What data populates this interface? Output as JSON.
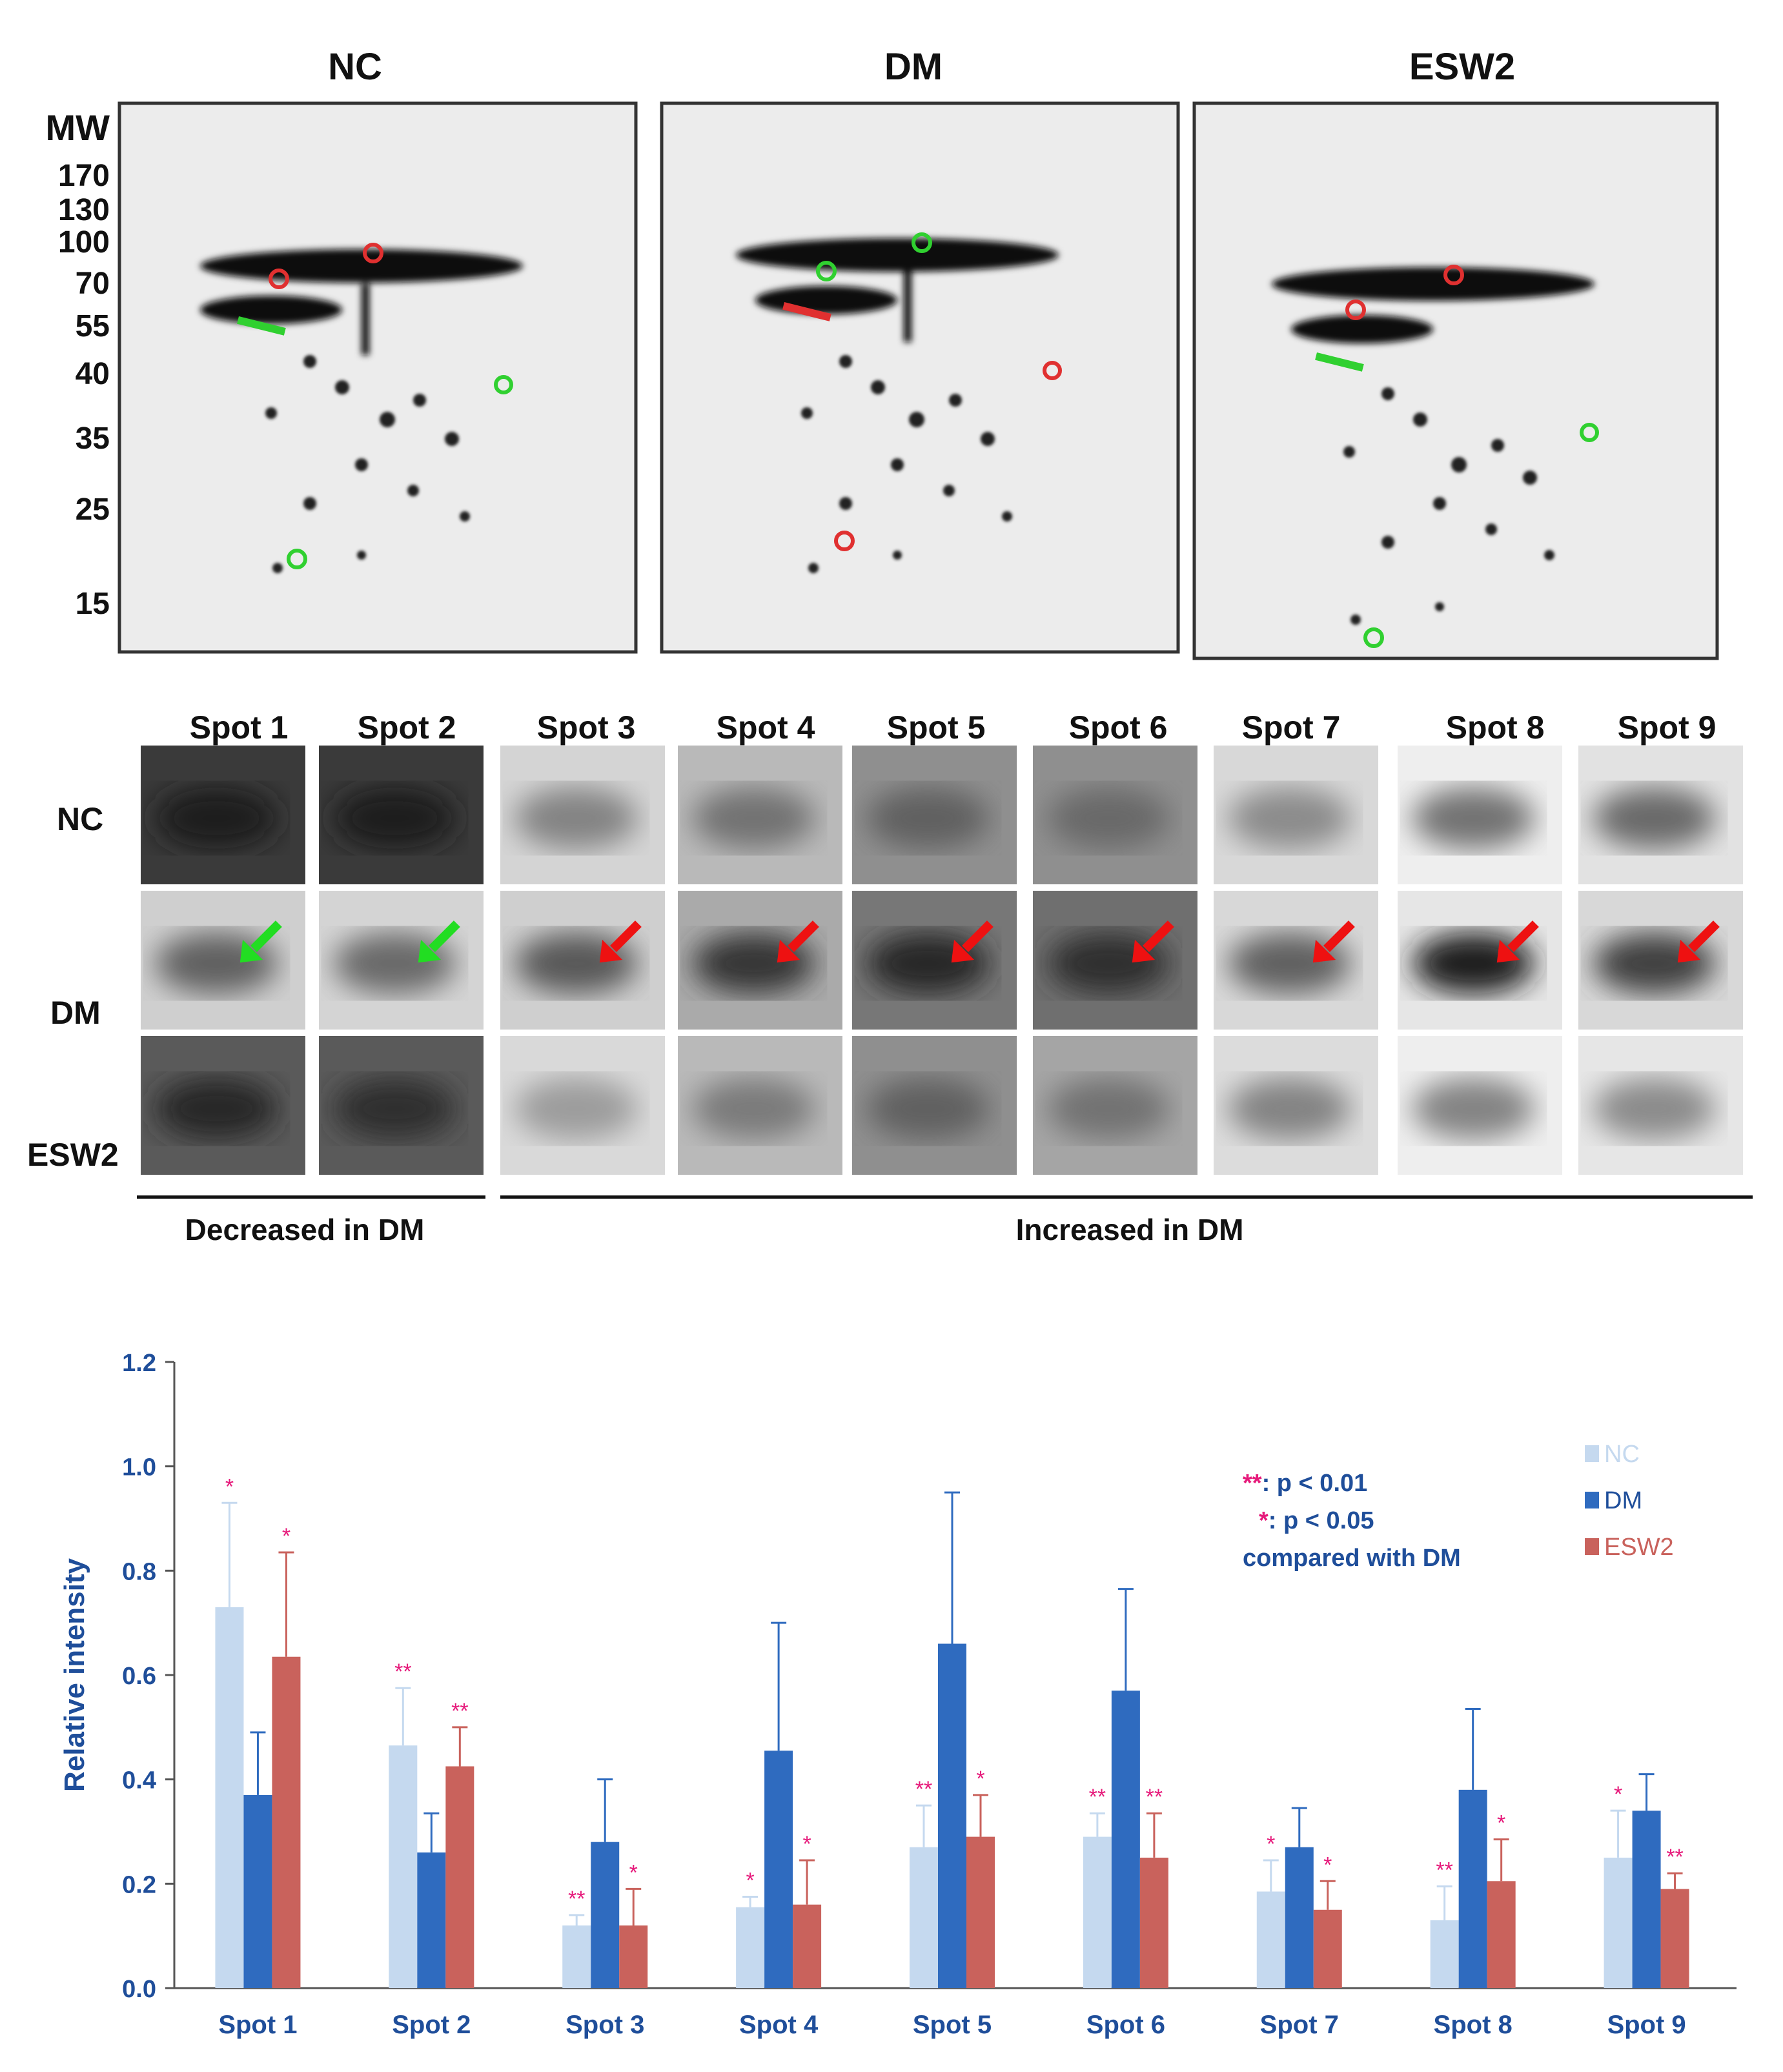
{
  "gels": {
    "titles": [
      "NC",
      "DM",
      "ESW2"
    ],
    "mw_title": "MW",
    "mw_ticks": [
      "170",
      "130",
      "100",
      "70",
      "55",
      "40",
      "35",
      "25",
      "15"
    ]
  },
  "panel": {
    "spot_titles": [
      "Spot 1",
      "Spot 2",
      "Spot 3",
      "Spot 4",
      "Spot 5",
      "Spot 6",
      "Spot 7",
      "Spot 8",
      "Spot 9"
    ],
    "row_labels": [
      "NC",
      "DM",
      "ESW2"
    ],
    "decreased_label": "Decreased in DM",
    "increased_label": "Increased in DM",
    "arrow_colors": {
      "decreased": "#22dd22",
      "increased": "#ee1111"
    }
  },
  "chart_data": {
    "type": "bar",
    "title": "",
    "xlabel": "",
    "ylabel": "Relative intensity",
    "ylim": [
      0,
      1.2
    ],
    "yticks": [
      "0.0",
      "0.2",
      "0.4",
      "0.6",
      "0.8",
      "1.0",
      "1.2"
    ],
    "categories": [
      "Spot 1",
      "Spot 2",
      "Spot 3",
      "Spot 4",
      "Spot 5",
      "Spot 6",
      "Spot 7",
      "Spot 8",
      "Spot 9"
    ],
    "series": [
      {
        "name": "NC",
        "color": "#c5d9ef",
        "values": [
          0.73,
          0.465,
          0.12,
          0.155,
          0.27,
          0.29,
          0.185,
          0.13,
          0.25
        ],
        "errors": [
          0.2,
          0.11,
          0.02,
          0.02,
          0.08,
          0.045,
          0.06,
          0.065,
          0.09
        ],
        "sig": [
          "*",
          "**",
          "**",
          "*",
          "**",
          "**",
          "*",
          "**",
          "*"
        ]
      },
      {
        "name": "DM",
        "color": "#2f6bbf",
        "values": [
          0.37,
          0.26,
          0.28,
          0.455,
          0.66,
          0.57,
          0.27,
          0.38,
          0.34
        ],
        "errors": [
          0.12,
          0.075,
          0.12,
          0.245,
          0.29,
          0.195,
          0.075,
          0.155,
          0.07
        ],
        "sig": [
          "",
          "",
          "",
          "",
          "",
          "",
          "",
          "",
          ""
        ]
      },
      {
        "name": "ESW2",
        "color": "#c9625c",
        "values": [
          0.635,
          0.425,
          0.12,
          0.16,
          0.29,
          0.25,
          0.15,
          0.205,
          0.19
        ],
        "errors": [
          0.2,
          0.075,
          0.07,
          0.085,
          0.08,
          0.085,
          0.055,
          0.08,
          0.03
        ],
        "sig": [
          "*",
          "**",
          "*",
          "*",
          "*",
          "**",
          "*",
          "*",
          "**"
        ]
      }
    ],
    "legend": {
      "position": "top-right",
      "entries": [
        "NC",
        "DM",
        "ESW2"
      ]
    },
    "annotation": {
      "line1_stars": "**",
      "line1_text": ": p < 0.01",
      "line2_stars": "*",
      "line2_text": ": p < 0.05",
      "line3": "compared with DM"
    }
  }
}
